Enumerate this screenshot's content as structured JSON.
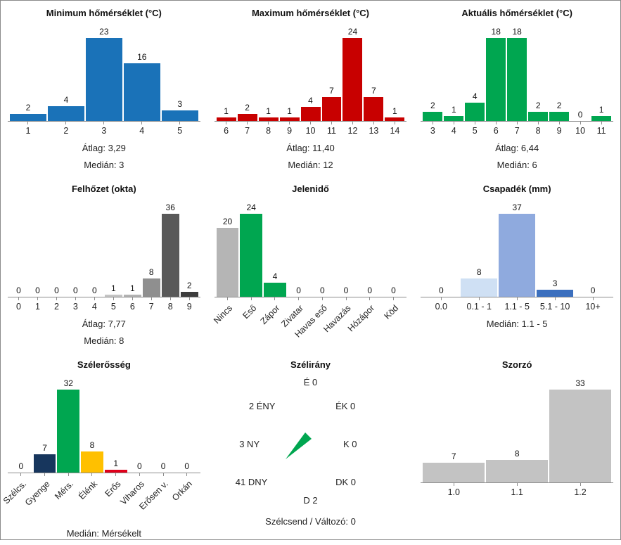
{
  "page": {
    "background": "#ffffff",
    "border_color": "#8a8a8a"
  },
  "chart_data": [
    {
      "id": "minimum-homerseklet",
      "type": "bar",
      "title": "Minimum hőmérséklet (°C)",
      "categories": [
        "1",
        "2",
        "3",
        "4",
        "5"
      ],
      "values": [
        2,
        4,
        23,
        16,
        3
      ],
      "bar_color": "#1a72b8",
      "rotated_labels": false,
      "stats": [
        "Átlag: 3,29",
        "Medián: 3"
      ]
    },
    {
      "id": "maximum-homerseklet",
      "type": "bar",
      "title": "Maximum hőmérséklet (°C)",
      "categories": [
        "6",
        "7",
        "8",
        "9",
        "10",
        "11",
        "12",
        "13",
        "14"
      ],
      "values": [
        1,
        2,
        1,
        1,
        4,
        7,
        24,
        7,
        1
      ],
      "bar_color": "#c80000",
      "rotated_labels": false,
      "stats": [
        "Átlag: 11,40",
        "Medián: 12"
      ]
    },
    {
      "id": "aktualis-homerseklet",
      "type": "bar",
      "title": "Aktuális hőmérséklet (°C)",
      "categories": [
        "3",
        "4",
        "5",
        "6",
        "7",
        "8",
        "9",
        "10",
        "11"
      ],
      "values": [
        2,
        1,
        4,
        18,
        18,
        2,
        2,
        0,
        1
      ],
      "bar_color": "#00a650",
      "rotated_labels": false,
      "stats": [
        "Átlag: 6,44",
        "Medián: 6"
      ]
    },
    {
      "id": "felhozet",
      "type": "bar",
      "title": "Felhőzet (okta)",
      "categories": [
        "0",
        "1",
        "2",
        "3",
        "4",
        "5",
        "6",
        "7",
        "8",
        "9"
      ],
      "values": [
        0,
        0,
        0,
        0,
        0,
        1,
        1,
        8,
        36,
        2
      ],
      "bar_colors": [
        "#c8c8c8",
        "#c8c8c8",
        "#c8c8c8",
        "#c8c8c8",
        "#c8c8c8",
        "#c4c4c4",
        "#b2b2b2",
        "#8f8f8f",
        "#595959",
        "#3d3d3d"
      ],
      "rotated_labels": false,
      "stats": [
        "Átlag: 7,77",
        "Medián: 8"
      ]
    },
    {
      "id": "jelenido",
      "type": "bar",
      "title": "Jelenidő",
      "categories": [
        "Nincs",
        "Eső",
        "Zápor",
        "Zivatar",
        "Havas eső",
        "Havazás",
        "Hózápor",
        "Köd"
      ],
      "values": [
        20,
        24,
        4,
        0,
        0,
        0,
        0,
        0
      ],
      "bar_colors": [
        "#b5b5b5",
        "#00a650",
        "#00a650",
        "#b5b5b5",
        "#b5b5b5",
        "#b5b5b5",
        "#b5b5b5",
        "#b5b5b5"
      ],
      "rotated_labels": true,
      "stats": []
    },
    {
      "id": "csapadek",
      "type": "bar",
      "title": "Csapadék (mm)",
      "categories": [
        "0.0",
        "0.1 - 1",
        "1.1 - 5",
        "5.1 - 10",
        "10+"
      ],
      "values": [
        0,
        8,
        37,
        3,
        0
      ],
      "bar_colors": [
        "#cfe0f4",
        "#cfe0f4",
        "#8faade",
        "#3b6fbe",
        "#cfe0f4"
      ],
      "rotated_labels": false,
      "stats": [
        "Medián: 1.1 - 5"
      ]
    },
    {
      "id": "szelerosseg",
      "type": "bar",
      "title": "Szélerősség",
      "categories": [
        "Szélcs.",
        "Gyenge",
        "Mérs.",
        "Élénk",
        "Erős",
        "Viharos",
        "Erősen v.",
        "Orkán"
      ],
      "values": [
        0,
        7,
        32,
        8,
        1,
        0,
        0,
        0
      ],
      "bar_colors": [
        "#c0c0c0",
        "#17365d",
        "#00a650",
        "#ffc000",
        "#e0001b",
        "#c0c0c0",
        "#c0c0c0",
        "#c0c0c0"
      ],
      "rotated_labels": true,
      "stats": [
        "Medián: Mérsékelt"
      ]
    },
    {
      "id": "szelirany",
      "type": "compass",
      "title": "Szélirány",
      "directions": [
        {
          "pos": "n",
          "label": "É 0"
        },
        {
          "pos": "ne",
          "label": "ÉK 0"
        },
        {
          "pos": "e",
          "label": "K 0"
        },
        {
          "pos": "se",
          "label": "DK 0"
        },
        {
          "pos": "s",
          "label": "D 2"
        },
        {
          "pos": "sw",
          "label": "41 DNY"
        },
        {
          "pos": "w",
          "label": "3 NY"
        },
        {
          "pos": "nw",
          "label": "2 ÉNY"
        }
      ],
      "needle": {
        "color": "#00a650",
        "points_to": "DNY"
      },
      "footer": "Szélcsend / Változó: 0"
    },
    {
      "id": "szorzo",
      "type": "bar",
      "title": "Szorzó",
      "categories": [
        "1.0",
        "1.1",
        "1.2"
      ],
      "values": [
        7,
        8,
        33
      ],
      "bar_color": "#c3c3c3",
      "rotated_labels": false,
      "stats": []
    }
  ]
}
